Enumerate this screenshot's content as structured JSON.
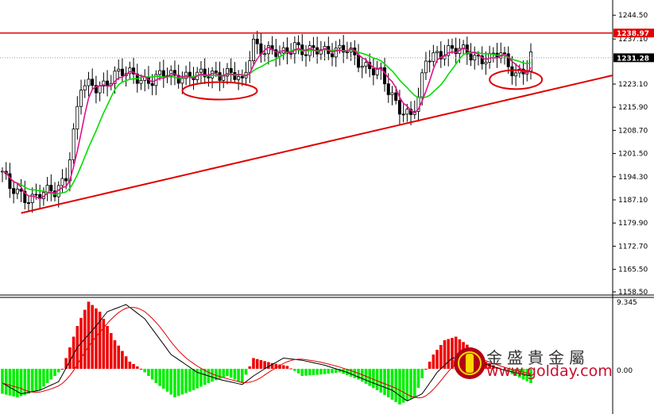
{
  "chart_data": [
    {
      "type": "candlestick",
      "ylim": [
        1158.5,
        1248.0
      ],
      "y_ticks": [
        "1244.50",
        "1237.10",
        "1223.10",
        "1215.90",
        "1208.70",
        "1201.50",
        "1194.30",
        "1187.10",
        "1179.90",
        "1172.70",
        "1165.50",
        "1158.50"
      ],
      "resistance_label": "1238.97",
      "resistance_value": 1238.97,
      "current_label": "1231.28",
      "current_value": 1231.28,
      "colors": {
        "price_line": "#e00000",
        "bar": "#000000",
        "ma_fast": "#e0108c",
        "ma_slow": "#00dd00",
        "ellipse": "#e00000"
      },
      "trendline": {
        "from": {
          "index": 5,
          "price": 1183.0
        },
        "to": {
          "index": 158,
          "price": 1224.5
        }
      },
      "highlight_ellipses": [
        {
          "index": 58,
          "price": 1221.0
        },
        {
          "index": 137,
          "price": 1224.5
        }
      ],
      "anchors": [
        [
          0,
          1196
        ],
        [
          2,
          1190
        ],
        [
          6,
          1188
        ],
        [
          10,
          1189
        ],
        [
          14,
          1189
        ],
        [
          17,
          1195
        ],
        [
          21,
          1222
        ],
        [
          25,
          1222
        ],
        [
          30,
          1226
        ],
        [
          35,
          1226
        ],
        [
          40,
          1224
        ],
        [
          44,
          1226
        ],
        [
          48,
          1226
        ],
        [
          52,
          1225
        ],
        [
          57,
          1227
        ],
        [
          61,
          1226
        ],
        [
          64,
          1223
        ],
        [
          67,
          1237
        ],
        [
          70,
          1233
        ],
        [
          74,
          1232
        ],
        [
          78,
          1236
        ],
        [
          81,
          1232
        ],
        [
          85,
          1234
        ],
        [
          89,
          1234
        ],
        [
          92,
          1233
        ],
        [
          95,
          1230
        ],
        [
          98,
          1229
        ],
        [
          101,
          1226
        ],
        [
          103,
          1220
        ],
        [
          106,
          1216
        ],
        [
          109,
          1214
        ],
        [
          111,
          1218
        ],
        [
          113,
          1230
        ],
        [
          116,
          1233
        ],
        [
          119,
          1234
        ],
        [
          122,
          1233
        ],
        [
          126,
          1232
        ],
        [
          130,
          1231
        ],
        [
          133,
          1232
        ],
        [
          135,
          1229
        ],
        [
          137,
          1227
        ],
        [
          140,
          1228
        ],
        [
          141,
          1231
        ]
      ]
    },
    {
      "type": "histogram",
      "title": "",
      "top_label": "9.345",
      "zero_label": "0.00",
      "colors": {
        "positive": "#ee0000",
        "negative": "#00ee00",
        "signal_line": "#000000",
        "signal_smooth": "#e00000"
      },
      "histogram_anchors": [
        [
          0,
          -3.5
        ],
        [
          4,
          -4
        ],
        [
          10,
          -3
        ],
        [
          16,
          0
        ],
        [
          20,
          6
        ],
        [
          23,
          9.4
        ],
        [
          26,
          8
        ],
        [
          30,
          4
        ],
        [
          34,
          1
        ],
        [
          37,
          0
        ],
        [
          41,
          -2
        ],
        [
          46,
          -4
        ],
        [
          51,
          -3
        ],
        [
          55,
          -2
        ],
        [
          60,
          -1
        ],
        [
          64,
          -2
        ],
        [
          67,
          1.5
        ],
        [
          72,
          0.8
        ],
        [
          76,
          0.4
        ],
        [
          80,
          -1
        ],
        [
          85,
          -0.8
        ],
        [
          90,
          -0.5
        ],
        [
          95,
          -1.5
        ],
        [
          100,
          -3
        ],
        [
          106,
          -5
        ],
        [
          110,
          -4
        ],
        [
          113,
          0
        ],
        [
          115,
          2
        ],
        [
          118,
          4
        ],
        [
          121,
          4.5
        ],
        [
          125,
          3
        ],
        [
          129,
          1
        ],
        [
          133,
          0
        ],
        [
          137,
          -1
        ],
        [
          141,
          -2
        ]
      ],
      "signal_anchors": [
        [
          0,
          -2
        ],
        [
          5,
          -3.5
        ],
        [
          10,
          -3
        ],
        [
          15,
          -1.8
        ],
        [
          20,
          3
        ],
        [
          25,
          6
        ],
        [
          28,
          8
        ],
        [
          33,
          9
        ],
        [
          38,
          7
        ],
        [
          45,
          2
        ],
        [
          52,
          -0.5
        ],
        [
          58,
          -1.5
        ],
        [
          64,
          -2.2
        ],
        [
          67,
          -1
        ],
        [
          70,
          0
        ],
        [
          75,
          1.5
        ],
        [
          80,
          1.2
        ],
        [
          86,
          0.5
        ],
        [
          92,
          -0.5
        ],
        [
          98,
          -1.8
        ],
        [
          104,
          -3
        ],
        [
          108,
          -4.5
        ],
        [
          112,
          -3.5
        ],
        [
          116,
          -0.5
        ],
        [
          120,
          1.5
        ],
        [
          124,
          1.7
        ],
        [
          128,
          0.8
        ],
        [
          134,
          -0.2
        ],
        [
          141,
          -1
        ]
      ]
    }
  ],
  "watermark": {
    "chinese": "金盛貴金屬",
    "url": "www.golday.com"
  }
}
